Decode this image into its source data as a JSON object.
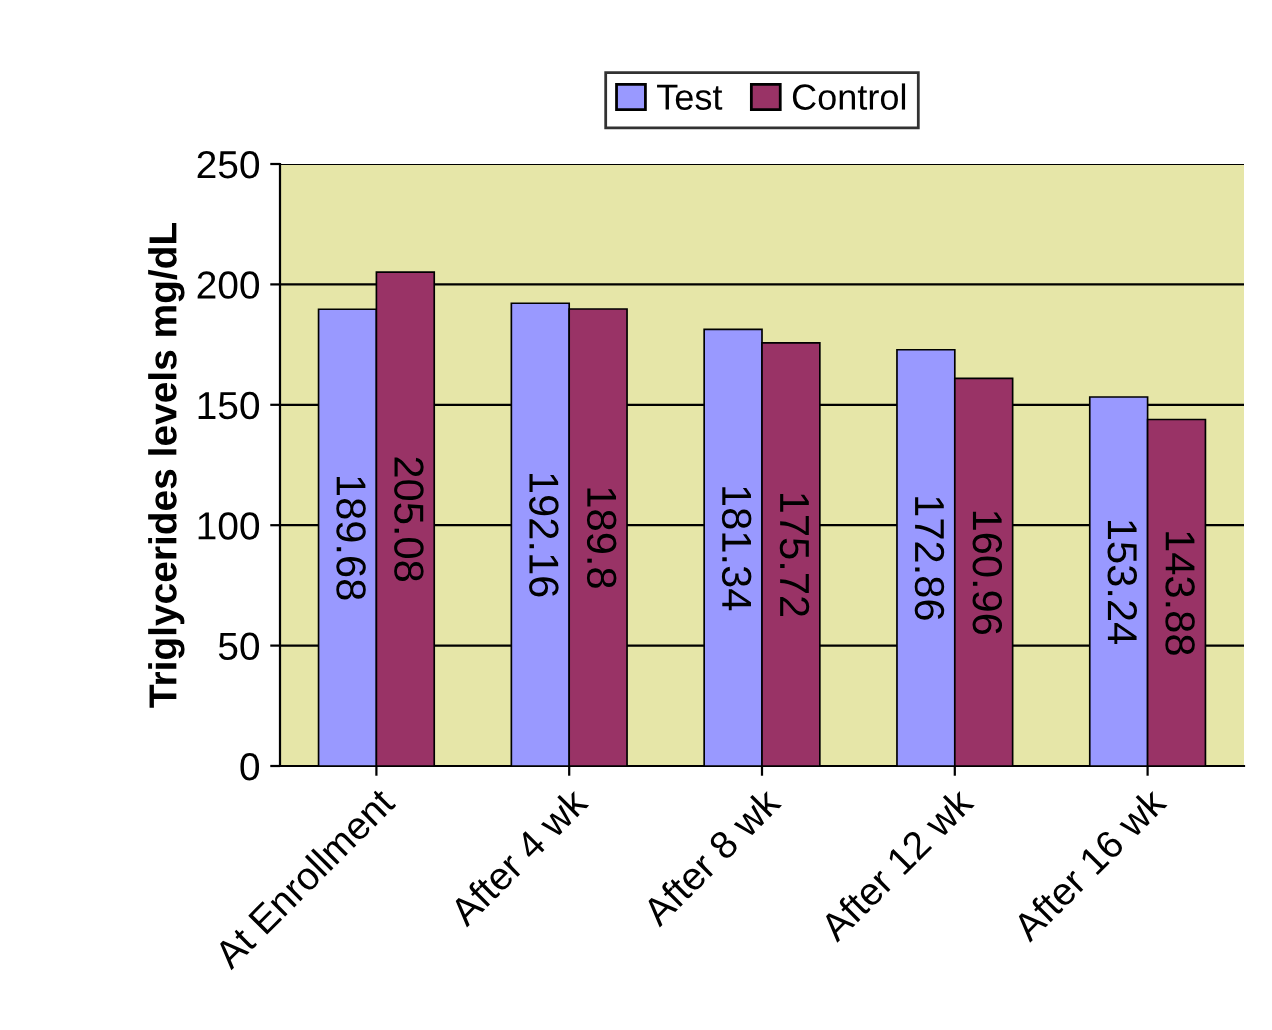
{
  "chart_data": {
    "type": "bar",
    "ylabel": "Triglycerides levels mg/dL",
    "categories": [
      "At Enrollment",
      "After 4 wk",
      "After 8 wk",
      "After 12 wk",
      "After 16 wk"
    ],
    "series": [
      {
        "name": "Test",
        "color": "#9999ff",
        "values": [
          189.68,
          192.16,
          181.34,
          172.86,
          153.24
        ]
      },
      {
        "name": "Control",
        "color": "#993366",
        "values": [
          205.08,
          189.8,
          175.72,
          160.96,
          143.88
        ]
      }
    ],
    "ylim": [
      0,
      250
    ],
    "yticks": [
      0,
      50,
      100,
      150,
      200,
      250
    ],
    "grid": "y",
    "legend": "top",
    "data_labels": true
  }
}
